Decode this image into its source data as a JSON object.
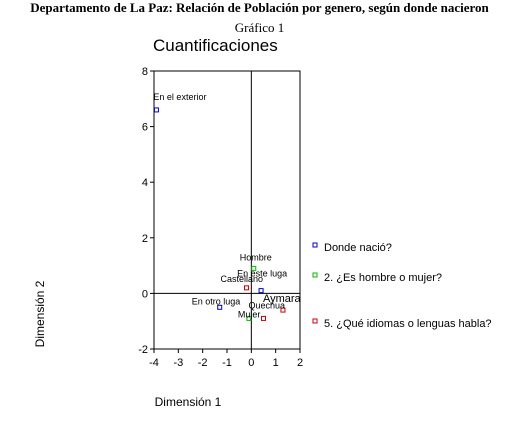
{
  "page": {
    "title": "Departamento de La Paz: Relación de Población por genero, según donde nacieron",
    "figure_label": "Gráfico  1"
  },
  "chart_data": {
    "type": "scatter",
    "title": "Cuantificaciones",
    "xlabel": "Dimensión 1",
    "ylabel": "Dimensión 2",
    "xlim": [
      -4,
      2
    ],
    "ylim": [
      -2,
      8
    ],
    "x_ticks": [
      -4,
      -3,
      -2,
      -1,
      0,
      1,
      2
    ],
    "y_ticks": [
      -2,
      0,
      2,
      4,
      6,
      8
    ],
    "reference_lines": {
      "x": 0,
      "y": 0
    },
    "legend_position": "right",
    "colors": {
      "Donde nació?": "#0000cc",
      "2. ¿Es hombre o mujer?": "#00bb00",
      "5. ¿Qué idiomas o lenguas habla?": "#cc0000"
    },
    "series": [
      {
        "name": "Donde nació?",
        "points": [
          {
            "label": "En el exterior",
            "x": -3.9,
            "y": 6.6
          },
          {
            "label": "En otro luga",
            "x": -1.3,
            "y": -0.5
          },
          {
            "label": "En este luga",
            "x": 0.4,
            "y": 0.1
          }
        ]
      },
      {
        "name": "2. ¿Es hombre o mujer?",
        "points": [
          {
            "label": "Hombre",
            "x": 0.1,
            "y": 0.9
          },
          {
            "label": "Mujer",
            "x": -0.1,
            "y": -0.9
          }
        ]
      },
      {
        "name": "5. ¿Qué idiomas o lenguas habla?",
        "points": [
          {
            "label": "Aymara",
            "x": 1.3,
            "y": -0.6
          },
          {
            "label": "Castellano",
            "x": -0.2,
            "y": 0.2
          },
          {
            "label": "Quechua",
            "x": 0.5,
            "y": -0.9
          }
        ]
      }
    ]
  }
}
